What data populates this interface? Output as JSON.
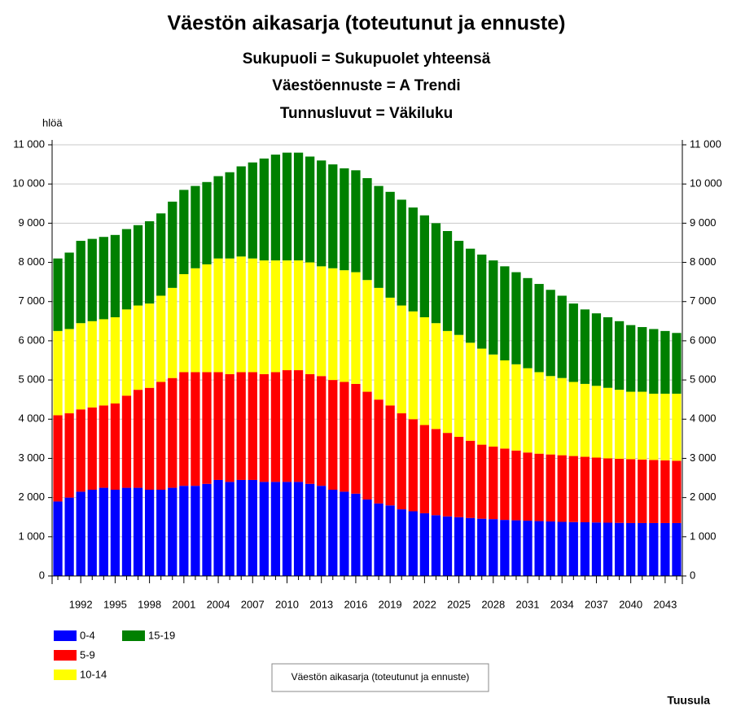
{
  "chart_data": {
    "type": "stacked_bar",
    "title": "Väestön aikasarja (toteutunut ja ennuste)",
    "subtitles": [
      "Sukupuoli = Sukupuolet yhteensä",
      "Väestöennuste = A Trendi",
      "Tunnusluvut = Väkiluku"
    ],
    "y_label": "hlöä",
    "categories": [
      null,
      null,
      "1992",
      null,
      null,
      "1995",
      null,
      null,
      "1998",
      null,
      null,
      "2001",
      null,
      null,
      "2004",
      null,
      null,
      "2007",
      null,
      null,
      "2010",
      null,
      null,
      "2013",
      null,
      null,
      "2016",
      null,
      null,
      "2019",
      null,
      null,
      "2022",
      null,
      null,
      "2025",
      null,
      null,
      "2028",
      null,
      null,
      "2031",
      null,
      null,
      "2034",
      null,
      null,
      "2037",
      null,
      null,
      "2040",
      null,
      null,
      "2043",
      null
    ],
    "series": [
      {
        "name": "0-4",
        "color": "#0000ff",
        "values": [
          1900,
          2000,
          2150,
          2200,
          2250,
          2200,
          2250,
          2250,
          2200,
          2200,
          2250,
          2300,
          2300,
          2350,
          2450,
          2400,
          2450,
          2450,
          2400,
          2400,
          2400,
          2400,
          2350,
          2300,
          2200,
          2150,
          2100,
          1950,
          1850,
          1800,
          1700,
          1650,
          1600,
          1550,
          1520,
          1500,
          1480,
          1460,
          1450,
          1430,
          1420,
          1410,
          1400,
          1390,
          1380,
          1375,
          1370,
          1365,
          1360,
          1355,
          1350,
          1350,
          1350,
          1350,
          1350
        ]
      },
      {
        "name": "5-9",
        "color": "#ff0000",
        "values": [
          2200,
          2150,
          2100,
          2100,
          2100,
          2200,
          2350,
          2500,
          2600,
          2750,
          2800,
          2900,
          2900,
          2850,
          2750,
          2750,
          2750,
          2750,
          2750,
          2800,
          2850,
          2850,
          2800,
          2800,
          2800,
          2800,
          2800,
          2750,
          2650,
          2550,
          2450,
          2350,
          2250,
          2200,
          2130,
          2050,
          1970,
          1890,
          1850,
          1820,
          1780,
          1740,
          1720,
          1710,
          1700,
          1685,
          1670,
          1655,
          1640,
          1635,
          1630,
          1620,
          1610,
          1600,
          1590
        ]
      },
      {
        "name": "10-14",
        "color": "#ffff00",
        "values": [
          2150,
          2150,
          2200,
          2200,
          2200,
          2200,
          2200,
          2150,
          2150,
          2200,
          2300,
          2500,
          2650,
          2750,
          2900,
          2950,
          2950,
          2900,
          2900,
          2850,
          2800,
          2800,
          2850,
          2800,
          2850,
          2850,
          2850,
          2850,
          2850,
          2750,
          2750,
          2750,
          2750,
          2700,
          2600,
          2600,
          2500,
          2450,
          2350,
          2250,
          2200,
          2150,
          2080,
          2000,
          1970,
          1890,
          1860,
          1830,
          1800,
          1760,
          1720,
          1730,
          1690,
          1700,
          1710
        ]
      },
      {
        "name": "15-19",
        "color": "#008000",
        "values": [
          1850,
          1950,
          2100,
          2100,
          2100,
          2100,
          2050,
          2050,
          2100,
          2100,
          2200,
          2150,
          2100,
          2100,
          2100,
          2200,
          2300,
          2450,
          2600,
          2700,
          2750,
          2750,
          2700,
          2700,
          2650,
          2600,
          2600,
          2600,
          2600,
          2700,
          2700,
          2650,
          2600,
          2550,
          2550,
          2400,
          2400,
          2400,
          2400,
          2400,
          2350,
          2300,
          2250,
          2200,
          2100,
          2000,
          1900,
          1850,
          1800,
          1750,
          1700,
          1650,
          1650,
          1600,
          1550
        ]
      }
    ],
    "ylim": [
      0,
      11000
    ],
    "yticks": [
      0,
      {
        "value": 1000,
        "label": "1 000"
      },
      {
        "value": 2000,
        "label": "2 000"
      },
      {
        "value": 3000,
        "label": "3 000"
      },
      {
        "value": 4000,
        "label": "4 000"
      },
      {
        "value": 5000,
        "label": "5 000"
      },
      {
        "value": 6000,
        "label": "6 000"
      },
      {
        "value": 7000,
        "label": "7 000"
      },
      {
        "value": 8000,
        "label": "8 000"
      },
      {
        "value": 9000,
        "label": "9 000"
      },
      {
        "value": 10000,
        "label": "10 000"
      },
      {
        "value": 11000,
        "label": "11 000"
      }
    ],
    "grid": true,
    "legend_position": "bottom-left",
    "caption": "Väestön aikasarja (toteutunut ja ennuste)",
    "footer": "Tuusula"
  }
}
